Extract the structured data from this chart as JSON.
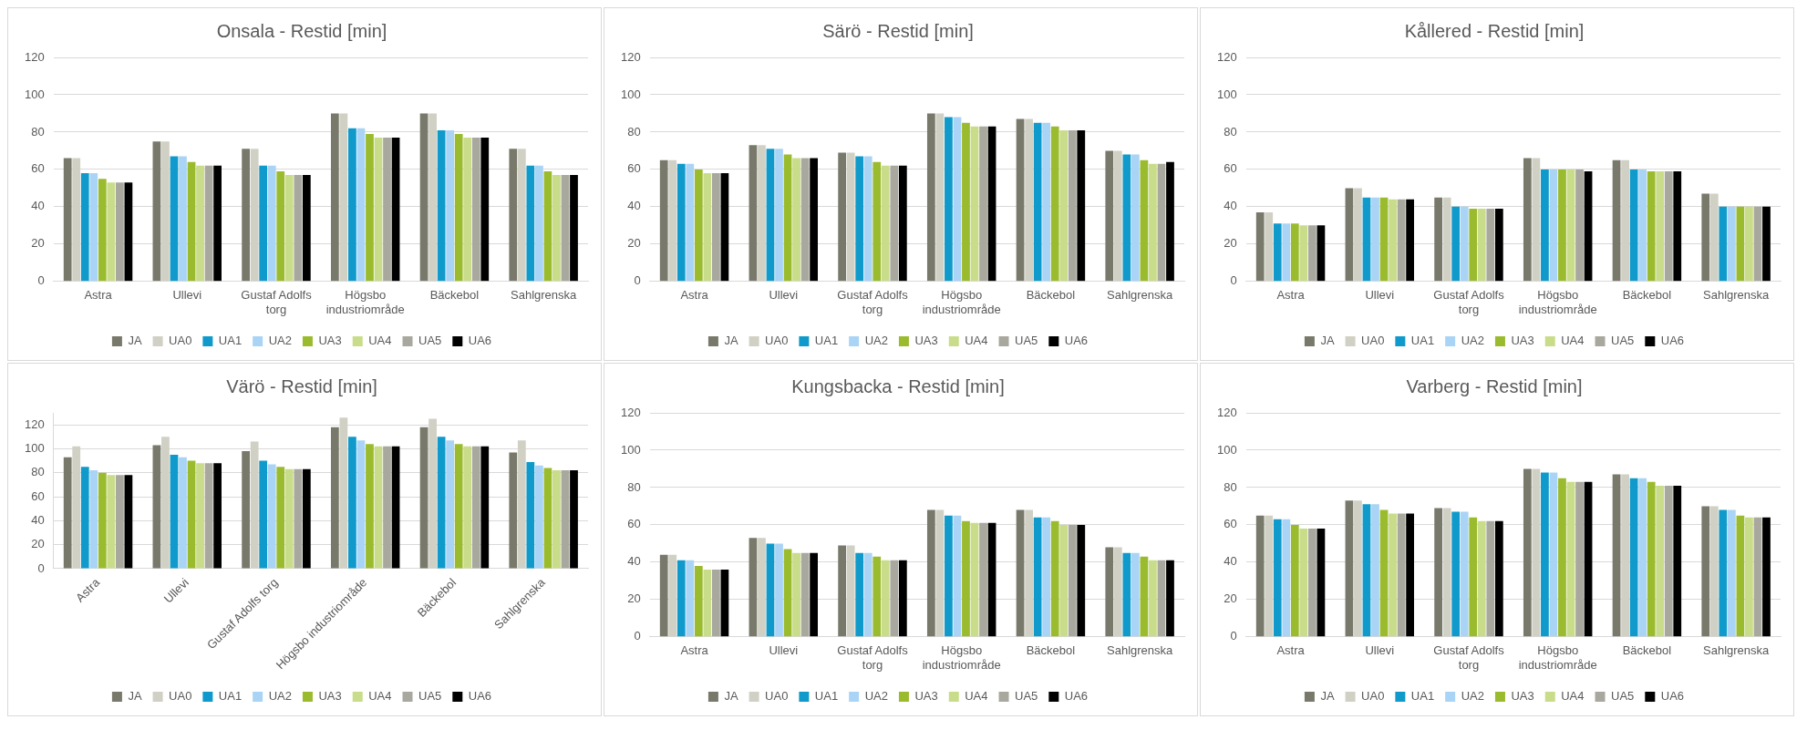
{
  "chart_data": [
    {
      "type": "bar",
      "title": "Onsala - Restid [min]",
      "categories": [
        "Astra",
        "Ullevi",
        "Gustaf Adolfs torg",
        "Högsbo industriområde",
        "Bäckebol",
        "Sahlgrenska"
      ],
      "ylim": [
        0,
        120
      ],
      "yticks": [
        0,
        20,
        40,
        60,
        80,
        100,
        120
      ],
      "grid": "y",
      "legend": "bottom",
      "series": [
        {
          "name": "JA",
          "color": "#78796a",
          "values": [
            66,
            75,
            71,
            90,
            90,
            71
          ]
        },
        {
          "name": "UA0",
          "color": "#d0d0c4",
          "values": [
            66,
            75,
            71,
            90,
            90,
            71
          ]
        },
        {
          "name": "UA1",
          "color": "#0f9acb",
          "values": [
            58,
            67,
            62,
            82,
            81,
            62
          ]
        },
        {
          "name": "UA2",
          "color": "#a9d4f5",
          "values": [
            58,
            67,
            62,
            82,
            81,
            62
          ]
        },
        {
          "name": "UA3",
          "color": "#9bbb2e",
          "values": [
            55,
            64,
            59,
            79,
            79,
            59
          ]
        },
        {
          "name": "UA4",
          "color": "#c9dc8a",
          "values": [
            53,
            62,
            57,
            77,
            77,
            57
          ]
        },
        {
          "name": "UA5",
          "color": "#a8a89e",
          "values": [
            53,
            62,
            57,
            77,
            77,
            57
          ]
        },
        {
          "name": "UA6",
          "color": "#000000",
          "values": [
            53,
            62,
            57,
            77,
            77,
            57
          ]
        }
      ]
    },
    {
      "type": "bar",
      "title": "Särö - Restid [min]",
      "categories": [
        "Astra",
        "Ullevi",
        "Gustaf Adolfs torg",
        "Högsbo industriområde",
        "Bäckebol",
        "Sahlgrenska"
      ],
      "ylim": [
        0,
        120
      ],
      "yticks": [
        0,
        20,
        40,
        60,
        80,
        100,
        120
      ],
      "grid": "y",
      "legend": "bottom",
      "series": [
        {
          "name": "JA",
          "color": "#78796a",
          "values": [
            65,
            73,
            69,
            90,
            87,
            70
          ]
        },
        {
          "name": "UA0",
          "color": "#d0d0c4",
          "values": [
            65,
            73,
            69,
            90,
            87,
            70
          ]
        },
        {
          "name": "UA1",
          "color": "#0f9acb",
          "values": [
            63,
            71,
            67,
            88,
            85,
            68
          ]
        },
        {
          "name": "UA2",
          "color": "#a9d4f5",
          "values": [
            63,
            71,
            67,
            88,
            85,
            68
          ]
        },
        {
          "name": "UA3",
          "color": "#9bbb2e",
          "values": [
            60,
            68,
            64,
            85,
            83,
            65
          ]
        },
        {
          "name": "UA4",
          "color": "#c9dc8a",
          "values": [
            58,
            66,
            62,
            83,
            81,
            63
          ]
        },
        {
          "name": "UA5",
          "color": "#a8a89e",
          "values": [
            58,
            66,
            62,
            83,
            81,
            63
          ]
        },
        {
          "name": "UA6",
          "color": "#000000",
          "values": [
            58,
            66,
            62,
            83,
            81,
            64
          ]
        }
      ]
    },
    {
      "type": "bar",
      "title": "Kållered - Restid [min]",
      "categories": [
        "Astra",
        "Ullevi",
        "Gustaf Adolfs torg",
        "Högsbo industriområde",
        "Bäckebol",
        "Sahlgrenska"
      ],
      "ylim": [
        0,
        120
      ],
      "yticks": [
        0,
        20,
        40,
        60,
        80,
        100,
        120
      ],
      "grid": "y",
      "legend": "bottom",
      "series": [
        {
          "name": "JA",
          "color": "#78796a",
          "values": [
            37,
            50,
            45,
            66,
            65,
            47
          ]
        },
        {
          "name": "UA0",
          "color": "#d0d0c4",
          "values": [
            37,
            50,
            45,
            66,
            65,
            47
          ]
        },
        {
          "name": "UA1",
          "color": "#0f9acb",
          "values": [
            31,
            45,
            40,
            60,
            60,
            40
          ]
        },
        {
          "name": "UA2",
          "color": "#a9d4f5",
          "values": [
            31,
            45,
            40,
            60,
            60,
            40
          ]
        },
        {
          "name": "UA3",
          "color": "#9bbb2e",
          "values": [
            31,
            45,
            39,
            60,
            59,
            40
          ]
        },
        {
          "name": "UA4",
          "color": "#c9dc8a",
          "values": [
            30,
            44,
            39,
            60,
            59,
            40
          ]
        },
        {
          "name": "UA5",
          "color": "#a8a89e",
          "values": [
            30,
            44,
            39,
            60,
            59,
            40
          ]
        },
        {
          "name": "UA6",
          "color": "#000000",
          "values": [
            30,
            44,
            39,
            59,
            59,
            40
          ]
        }
      ]
    },
    {
      "type": "bar",
      "title": "Värö - Restid [min]",
      "categories": [
        "Astra",
        "Ullevi",
        "Gustaf Adolfs torg",
        "Högsbo industriområde",
        "Bäckebol",
        "Sahlgrenska"
      ],
      "ylim": [
        0,
        130
      ],
      "yticks": [
        0,
        20,
        40,
        60,
        80,
        100,
        120
      ],
      "grid": "y",
      "legend": "bottom",
      "series": [
        {
          "name": "JA",
          "color": "#78796a",
          "values": [
            93,
            103,
            98,
            118,
            118,
            97
          ]
        },
        {
          "name": "UA0",
          "color": "#d0d0c4",
          "values": [
            102,
            110,
            106,
            126,
            125,
            107
          ]
        },
        {
          "name": "UA1",
          "color": "#0f9acb",
          "values": [
            85,
            95,
            90,
            110,
            110,
            89
          ]
        },
        {
          "name": "UA2",
          "color": "#a9d4f5",
          "values": [
            82,
            93,
            87,
            107,
            107,
            86
          ]
        },
        {
          "name": "UA3",
          "color": "#9bbb2e",
          "values": [
            80,
            90,
            85,
            104,
            104,
            84
          ]
        },
        {
          "name": "UA4",
          "color": "#c9dc8a",
          "values": [
            78,
            88,
            83,
            102,
            102,
            82
          ]
        },
        {
          "name": "UA5",
          "color": "#a8a89e",
          "values": [
            78,
            88,
            83,
            102,
            102,
            82
          ]
        },
        {
          "name": "UA6",
          "color": "#000000",
          "values": [
            78,
            88,
            83,
            102,
            102,
            82
          ]
        }
      ]
    },
    {
      "type": "bar",
      "title": "Kungsbacka - Restid [min]",
      "categories": [
        "Astra",
        "Ullevi",
        "Gustaf Adolfs torg",
        "Högsbo industriområde",
        "Bäckebol",
        "Sahlgrenska"
      ],
      "ylim": [
        0,
        120
      ],
      "yticks": [
        0,
        20,
        40,
        60,
        80,
        100,
        120
      ],
      "grid": "y",
      "legend": "bottom",
      "series": [
        {
          "name": "JA",
          "color": "#78796a",
          "values": [
            44,
            53,
            49,
            68,
            68,
            48
          ]
        },
        {
          "name": "UA0",
          "color": "#d0d0c4",
          "values": [
            44,
            53,
            49,
            68,
            68,
            48
          ]
        },
        {
          "name": "UA1",
          "color": "#0f9acb",
          "values": [
            41,
            50,
            45,
            65,
            64,
            45
          ]
        },
        {
          "name": "UA2",
          "color": "#a9d4f5",
          "values": [
            41,
            50,
            45,
            65,
            64,
            45
          ]
        },
        {
          "name": "UA3",
          "color": "#9bbb2e",
          "values": [
            38,
            47,
            43,
            62,
            62,
            43
          ]
        },
        {
          "name": "UA4",
          "color": "#c9dc8a",
          "values": [
            36,
            45,
            41,
            61,
            60,
            41
          ]
        },
        {
          "name": "UA5",
          "color": "#a8a89e",
          "values": [
            36,
            45,
            41,
            61,
            60,
            41
          ]
        },
        {
          "name": "UA6",
          "color": "#000000",
          "values": [
            36,
            45,
            41,
            61,
            60,
            41
          ]
        }
      ]
    },
    {
      "type": "bar",
      "title": "Varberg - Restid [min]",
      "categories": [
        "Astra",
        "Ullevi",
        "Gustaf Adolfs torg",
        "Högsbo industriområde",
        "Bäckebol",
        "Sahlgrenska"
      ],
      "ylim": [
        0,
        120
      ],
      "yticks": [
        0,
        20,
        40,
        60,
        80,
        100,
        120
      ],
      "grid": "y",
      "legend": "bottom",
      "series": [
        {
          "name": "JA",
          "color": "#78796a",
          "values": [
            65,
            73,
            69,
            90,
            87,
            70
          ]
        },
        {
          "name": "UA0",
          "color": "#d0d0c4",
          "values": [
            65,
            73,
            69,
            90,
            87,
            70
          ]
        },
        {
          "name": "UA1",
          "color": "#0f9acb",
          "values": [
            63,
            71,
            67,
            88,
            85,
            68
          ]
        },
        {
          "name": "UA2",
          "color": "#a9d4f5",
          "values": [
            63,
            71,
            67,
            88,
            85,
            68
          ]
        },
        {
          "name": "UA3",
          "color": "#9bbb2e",
          "values": [
            60,
            68,
            64,
            85,
            83,
            65
          ]
        },
        {
          "name": "UA4",
          "color": "#c9dc8a",
          "values": [
            58,
            66,
            62,
            83,
            81,
            64
          ]
        },
        {
          "name": "UA5",
          "color": "#a8a89e",
          "values": [
            58,
            66,
            62,
            83,
            81,
            64
          ]
        },
        {
          "name": "UA6",
          "color": "#000000",
          "values": [
            58,
            66,
            62,
            83,
            81,
            64
          ]
        }
      ]
    }
  ]
}
